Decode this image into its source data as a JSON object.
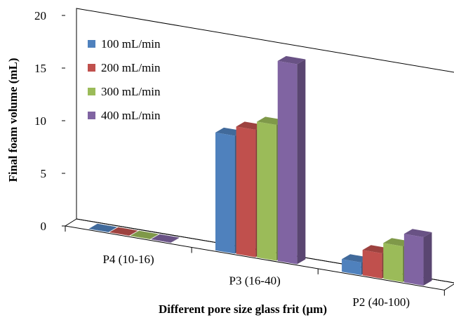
{
  "chart_data": {
    "type": "bar",
    "title": "",
    "xlabel": "Different pore size glass frit (µm)",
    "ylabel": "Final foam volume (mL)",
    "ylim": [
      0,
      20
    ],
    "yticks": [
      "0",
      "5",
      "10",
      "15",
      "20"
    ],
    "categories": [
      "P4 (10-16)",
      "P3 (16-40)",
      "P2 (40-100)"
    ],
    "series": [
      {
        "name": "100 mL/min",
        "color": "#4f81bd",
        "values": [
          0,
          11.2,
          1.2
        ]
      },
      {
        "name": "200 mL/min",
        "color": "#c0504d",
        "values": [
          0,
          12.1,
          2.4
        ]
      },
      {
        "name": "300 mL/min",
        "color": "#9bbb59",
        "values": [
          0,
          12.9,
          3.4
        ]
      },
      {
        "name": "400 mL/min",
        "color": "#8064a2",
        "values": [
          0,
          19.0,
          4.6
        ]
      }
    ],
    "legend_position": "top-left",
    "grid": false,
    "style": "3d-clustered-column"
  }
}
